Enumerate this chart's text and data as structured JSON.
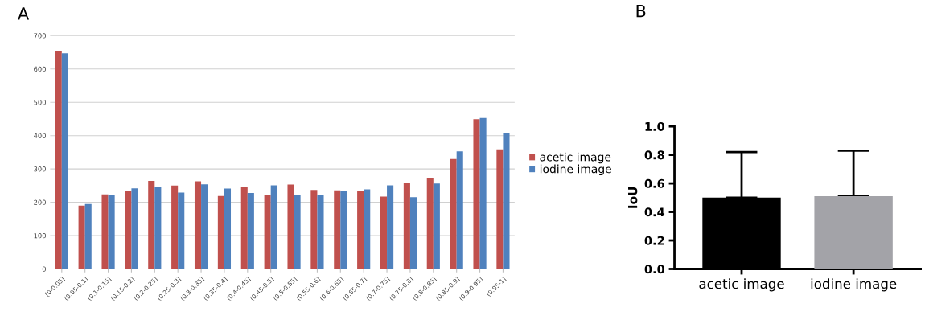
{
  "chart_data": [
    {
      "type": "bar",
      "title": "A",
      "categories": [
        "[0-0.05]",
        "(0.05-0.1]",
        "(0.1-0.15]",
        "(0.15-0.2]",
        "(0.2-0.25]",
        "(0.25-0.3]",
        "(0.3-0.35]",
        "(0.35-0.4]",
        "(0.4-0.45]",
        "(0.45-0.5]",
        "(0.5-0.55]",
        "(0.55-0.6]",
        "(0.6-0.65]",
        "(0.65-0.7]",
        "(0.7-0.75]",
        "(0.75-0.8]",
        "(0.8-0.85]",
        "(0.85-0.9]",
        "(0.9-0.95]",
        "(0.95-1]"
      ],
      "series": [
        {
          "name": "acetic image",
          "color": "#c0504d",
          "values": [
            655,
            190,
            224,
            235,
            264,
            250,
            263,
            219,
            246,
            221,
            253,
            237,
            236,
            233,
            217,
            257,
            273,
            330,
            449,
            359
          ]
        },
        {
          "name": "iodine image",
          "color": "#4f81bd",
          "values": [
            647,
            195,
            221,
            242,
            245,
            229,
            254,
            241,
            228,
            251,
            222,
            222,
            235,
            239,
            251,
            215,
            256,
            353,
            453,
            408
          ]
        }
      ],
      "ylim": [
        0,
        700
      ],
      "yticks": [
        0,
        100,
        200,
        300,
        400,
        500,
        600,
        700
      ],
      "grid": "y",
      "legend": "right"
    },
    {
      "type": "bar",
      "title": "B",
      "ylabel": "IoU",
      "categories": [
        "acetic image",
        "iodine image"
      ],
      "values": [
        0.5,
        0.51
      ],
      "colors": [
        "#000000",
        "#a3a3a8"
      ],
      "errors": [
        [
          0.5,
          0.82
        ],
        [
          0.51,
          0.83
        ]
      ],
      "ylim": [
        0,
        1.0
      ],
      "yticks": [
        {
          "value": 0,
          "label": "0.0"
        },
        {
          "value": 0.2,
          "label": "0.2"
        },
        {
          "value": 0.4,
          "label": "0.4"
        },
        {
          "value": 0.6,
          "label": "0.6"
        },
        {
          "value": 0.8,
          "label": "0.8"
        },
        {
          "value": 1.0,
          "label": "1.0"
        }
      ],
      "grid": false,
      "legend": false
    }
  ]
}
